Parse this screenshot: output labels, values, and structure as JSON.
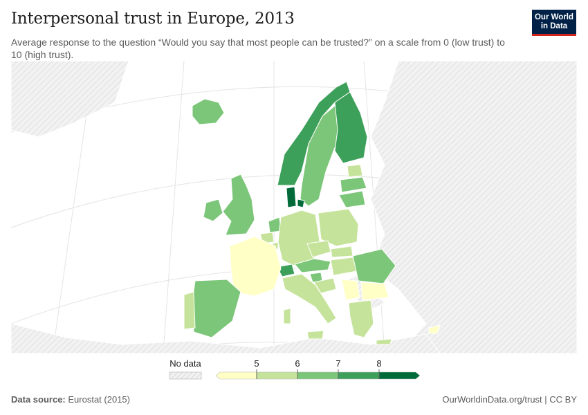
{
  "header": {
    "title": "Interpersonal trust in Europe, 2013",
    "subtitle": "Average response to the question “Would you say that most people can be trusted?” on a scale from 0 (low trust) to 10 (high trust)."
  },
  "logo": {
    "line1": "Our World",
    "line2": "in Data",
    "bg_color": "#002147",
    "accent_color": "#ce261e"
  },
  "legend": {
    "no_data_label": "No data",
    "ticks": [
      "5",
      "6",
      "7",
      "8"
    ],
    "bins": [
      {
        "range": "<5",
        "color": "#ffffc6"
      },
      {
        "range": "5-6",
        "color": "#c5e39a"
      },
      {
        "range": "6-7",
        "color": "#7cc679"
      },
      {
        "range": "7-8",
        "color": "#3da05a"
      },
      {
        "range": ">8",
        "color": "#006b38"
      }
    ]
  },
  "colors": {
    "no_data_land": "#f2f2f2",
    "hatch": "#dcdcdc",
    "ocean": "#ffffff",
    "border": "#ffffff"
  },
  "map": {
    "regions": [
      {
        "name": "Iceland",
        "bin": 2
      },
      {
        "name": "Norway",
        "bin": 3
      },
      {
        "name": "Sweden",
        "bin": 2
      },
      {
        "name": "Finland",
        "bin": 3
      },
      {
        "name": "Denmark",
        "bin": 4
      },
      {
        "name": "Estonia",
        "bin": 1
      },
      {
        "name": "Latvia",
        "bin": 2
      },
      {
        "name": "Lithuania",
        "bin": 2
      },
      {
        "name": "Ireland",
        "bin": 2
      },
      {
        "name": "United Kingdom",
        "bin": 2
      },
      {
        "name": "Netherlands",
        "bin": 2
      },
      {
        "name": "Belgium",
        "bin": 1
      },
      {
        "name": "Luxembourg",
        "bin": 1
      },
      {
        "name": "Germany",
        "bin": 1
      },
      {
        "name": "Poland",
        "bin": 1
      },
      {
        "name": "Czechia",
        "bin": 1
      },
      {
        "name": "Slovakia",
        "bin": 1
      },
      {
        "name": "Austria",
        "bin": 2
      },
      {
        "name": "Switzerland",
        "bin": 3
      },
      {
        "name": "Slovenia",
        "bin": 2
      },
      {
        "name": "Hungary",
        "bin": 1
      },
      {
        "name": "Romania",
        "bin": 2
      },
      {
        "name": "France",
        "bin": 0
      },
      {
        "name": "Italy",
        "bin": 1
      },
      {
        "name": "Spain",
        "bin": 2
      },
      {
        "name": "Portugal",
        "bin": 1
      },
      {
        "name": "Croatia",
        "bin": 1
      },
      {
        "name": "Serbia",
        "bin": 0
      },
      {
        "name": "Bulgaria",
        "bin": 0
      },
      {
        "name": "Greece",
        "bin": 1
      },
      {
        "name": "Cyprus",
        "bin": 0
      },
      {
        "name": "Malta",
        "bin": 1
      }
    ]
  },
  "footer": {
    "source_label": "Data source:",
    "source_value": "Eurostat (2015)",
    "url_label": "OurWorldinData.org/trust | CC BY"
  }
}
